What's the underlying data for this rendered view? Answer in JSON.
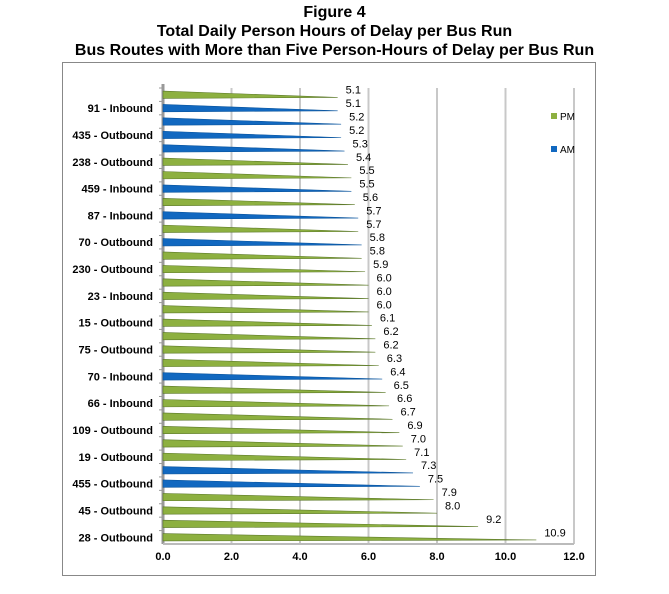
{
  "chart_data": {
    "type": "bar",
    "orientation": "horizontal",
    "title": "Figure 4",
    "subtitle": "Total Daily Person Hours of Delay per Bus Run",
    "subtitle2": "Bus Routes with More than Five Person-Hours of Delay per Bus Run",
    "xlabel": "",
    "ylabel": "",
    "xlim": [
      0,
      12
    ],
    "xticks": [
      "0.0",
      "2.0",
      "4.0",
      "6.0",
      "8.0",
      "10.0",
      "12.0"
    ],
    "grid": true,
    "legend": {
      "position": "right",
      "entries": [
        {
          "name": "PM",
          "color": "#8db040"
        },
        {
          "name": "AM",
          "color": "#1168c0"
        }
      ]
    },
    "categories": [
      "",
      "91 - Inbound",
      "",
      "435 - Outbound",
      "",
      "238 - Outbound",
      "",
      "459 - Inbound",
      "",
      "87 - Inbound",
      "",
      "70 - Outbound",
      "",
      "230 - Outbound",
      "",
      "23 - Inbound",
      "",
      "15 - Outbound",
      "",
      "75 - Outbound",
      "",
      "70 - Inbound",
      "",
      "66 - Inbound",
      "",
      "109 - Outbound",
      "",
      "19 - Outbound",
      "",
      "455 - Outbound",
      "",
      "45 - Outbound",
      "",
      "28 - Outbound"
    ],
    "values": [
      5.1,
      5.1,
      5.2,
      5.2,
      5.3,
      5.4,
      5.5,
      5.5,
      5.6,
      5.7,
      5.7,
      5.8,
      5.8,
      5.9,
      6.0,
      6.0,
      6.0,
      6.1,
      6.2,
      6.2,
      6.3,
      6.4,
      6.5,
      6.6,
      6.7,
      6.9,
      7.0,
      7.1,
      7.3,
      7.5,
      7.9,
      8.0,
      9.2,
      10.9
    ],
    "value_labels": [
      "5.1",
      "5.1",
      "5.2",
      "5.2",
      "5.3",
      "5.4",
      "5.5",
      "5.5",
      "5.6",
      "5.7",
      "5.7",
      "5.8",
      "5.8",
      "5.9",
      "6.0",
      "6.0",
      "6.0",
      "6.1",
      "6.2",
      "6.2",
      "6.3",
      "6.4",
      "6.5",
      "6.6",
      "6.7",
      "6.9",
      "7.0",
      "7.1",
      "7.3",
      "7.5",
      "7.9",
      "8.0",
      "9.2",
      "10.9"
    ],
    "period": [
      "PM",
      "AM",
      "AM",
      "AM",
      "AM",
      "PM",
      "PM",
      "AM",
      "PM",
      "AM",
      "PM",
      "AM",
      "PM",
      "PM",
      "PM",
      "PM",
      "PM",
      "PM",
      "PM",
      "PM",
      "PM",
      "AM",
      "PM",
      "PM",
      "PM",
      "PM",
      "PM",
      "PM",
      "AM",
      "AM",
      "PM",
      "PM",
      "PM",
      "PM"
    ]
  }
}
